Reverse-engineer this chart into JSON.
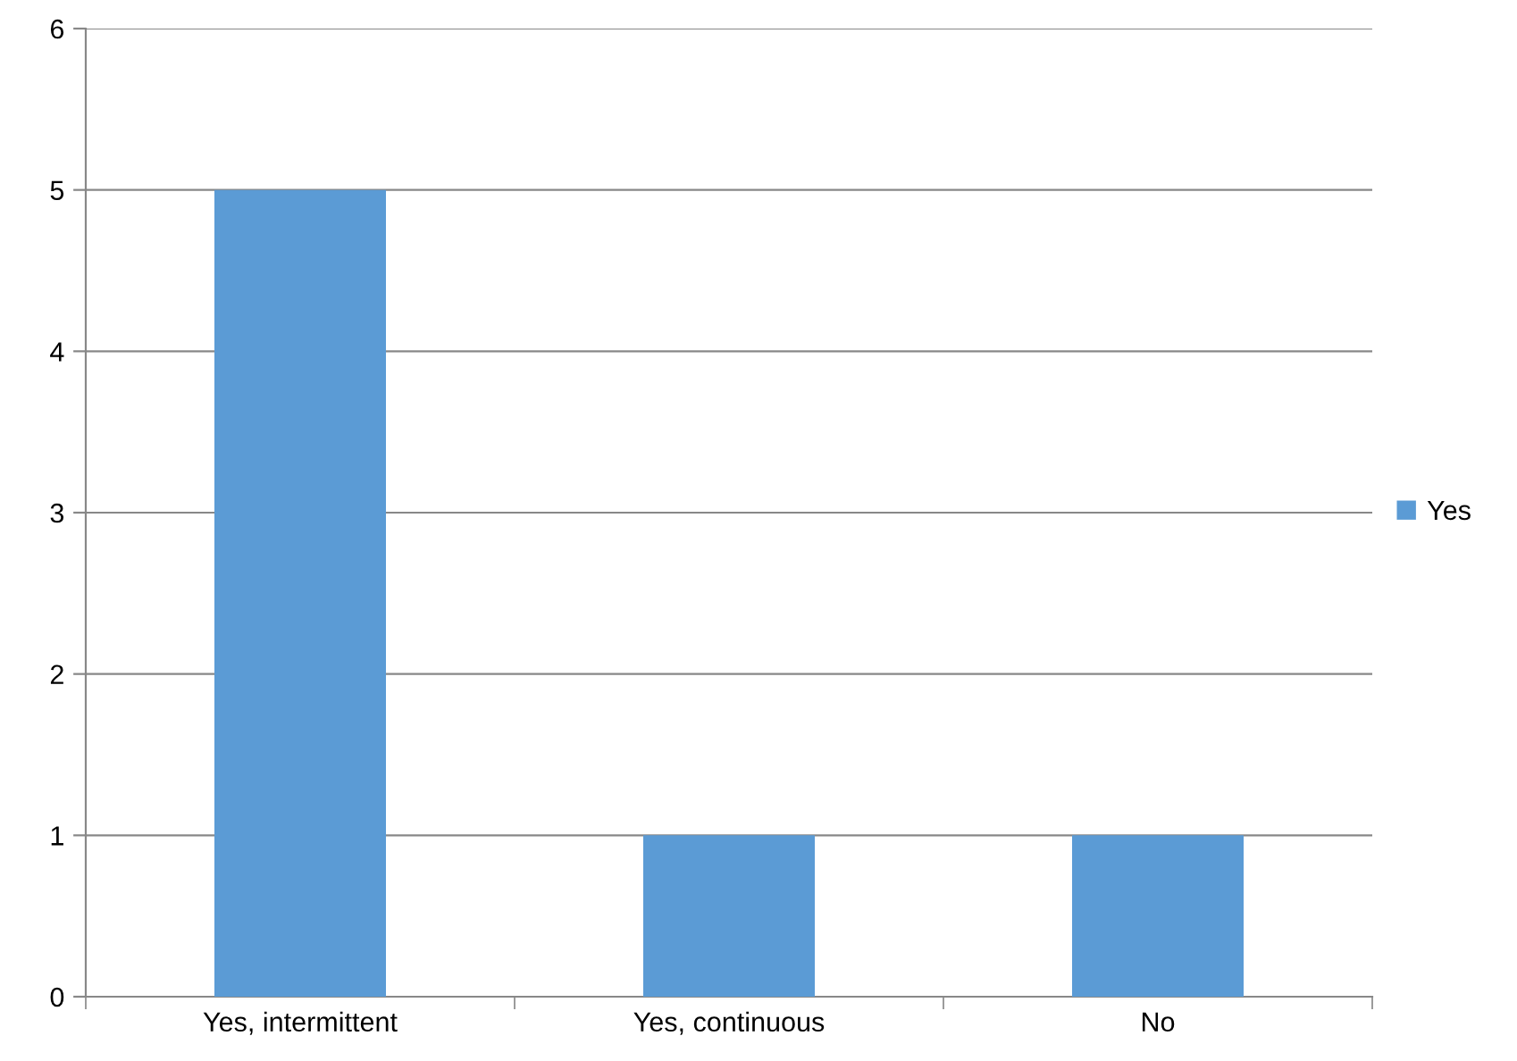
{
  "chart_data": {
    "type": "bar",
    "categories": [
      "Yes, intermittent",
      "Yes, continuous",
      "No"
    ],
    "series": [
      {
        "name": "Yes",
        "color": "#5b9bd5",
        "values": [
          5,
          1,
          1
        ]
      }
    ],
    "ylim": [
      0,
      6
    ],
    "yticks": [
      0,
      1,
      2,
      3,
      4,
      5,
      6
    ],
    "grid": "y",
    "legend": "right"
  }
}
